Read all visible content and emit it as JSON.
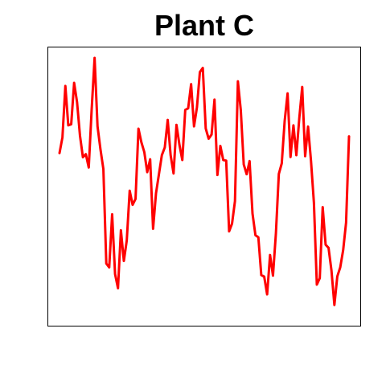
{
  "chart_data": {
    "type": "line",
    "title": "Plant C",
    "xlabel": "",
    "ylabel": "",
    "grid": false,
    "axes_visible": false,
    "line_color": "#ff0000",
    "xlim": [
      0,
      115
    ],
    "ylim": [
      0,
      100
    ],
    "series": [
      {
        "values": [
          63.0,
          69.1,
          89.1,
          73.8,
          74.2,
          90.3,
          82.8,
          69.8,
          61.4,
          62.6,
          57.4,
          80.0,
          100.0,
          73.4,
          64.5,
          56.8,
          20.1,
          18.6,
          39.2,
          16.0,
          10.5,
          33.0,
          21.1,
          29.1,
          48.4,
          42.9,
          45.2,
          72.5,
          67.2,
          63.4,
          55.6,
          60.6,
          33.6,
          47.4,
          54.8,
          62.2,
          65.2,
          75.9,
          62.2,
          55.1,
          74.0,
          66.3,
          60.3,
          79.8,
          80.4,
          89.8,
          73.4,
          80.8,
          94.5,
          96.1,
          72.6,
          68.6,
          70.2,
          83.8,
          54.5,
          65.8,
          60.3,
          60.1,
          32.6,
          35.6,
          44.3,
          90.9,
          79.6,
          58.6,
          54.8,
          59.9,
          39.5,
          31.1,
          30.3,
          15.6,
          15.0,
          8.1,
          23.4,
          15.4,
          31.8,
          54.9,
          59.0,
          75.5,
          86.2,
          61.5,
          73.8,
          62.2,
          76.6,
          88.7,
          61.8,
          73.3,
          60.0,
          43.7,
          11.9,
          14.4,
          42.0,
          27.4,
          26.2,
          17.4,
          4.0,
          15.1,
          18.6,
          25.3,
          36.0,
          69.5
        ]
      }
    ]
  }
}
